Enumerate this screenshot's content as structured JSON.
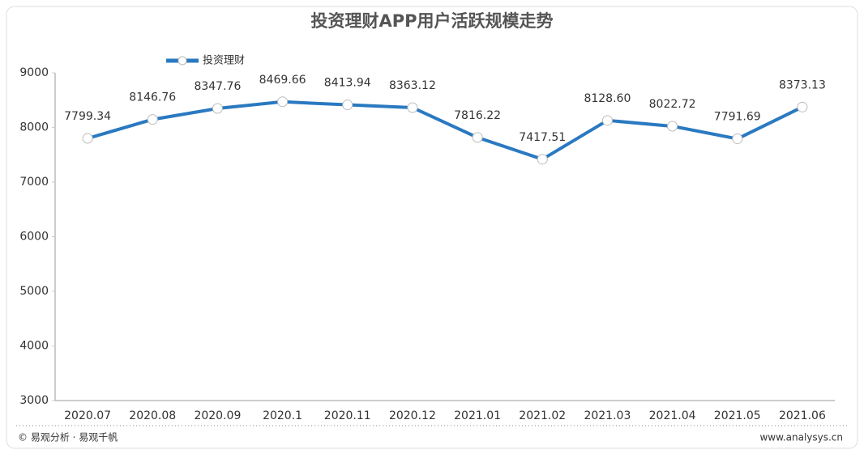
{
  "chart_data": {
    "type": "line",
    "title": "投资理财APP用户活跃规模走势",
    "categories": [
      "2020.07",
      "2020.08",
      "2020.09",
      "2020.1",
      "2020.11",
      "2020.12",
      "2021.01",
      "2021.02",
      "2021.03",
      "2021.04",
      "2021.05",
      "2021.06"
    ],
    "series": [
      {
        "name": "投资理财",
        "color": "#2a79c1",
        "values": [
          7799.34,
          8146.76,
          8347.76,
          8469.66,
          8413.94,
          8363.12,
          7816.22,
          7417.51,
          8128.6,
          8022.72,
          7791.69,
          8373.13
        ],
        "value_labels": [
          "7799.34",
          "8146.76",
          "8347.76",
          "8469.66",
          "8413.94",
          "8363.12",
          "7816.22",
          "7417.51",
          "8128.60",
          "8022.72",
          "7791.69",
          "8373.13"
        ]
      }
    ],
    "ylim": [
      3000,
      9000
    ],
    "yticks": [
      3000,
      4000,
      5000,
      6000,
      7000,
      8000,
      9000
    ],
    "grid": false,
    "source": "© 易观分析 · 易观千帆",
    "website": "www.analysys.cn"
  }
}
